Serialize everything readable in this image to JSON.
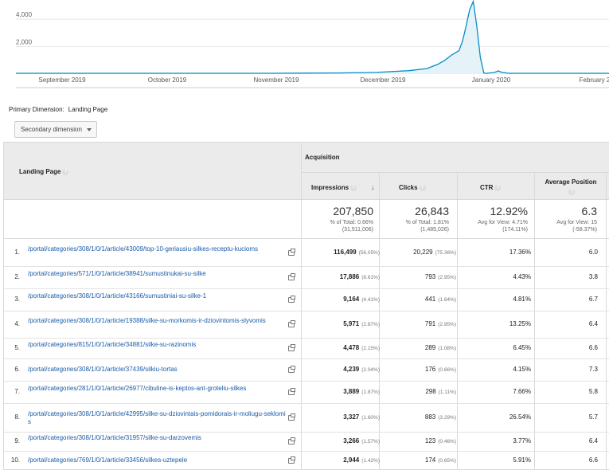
{
  "chart": {
    "y_ticks": [
      "4,000",
      "2,000"
    ],
    "x_ticks": [
      "September 2019",
      "October 2019",
      "November 2019",
      "December 2019",
      "January 2020",
      "February 2"
    ],
    "colors": {
      "line": "#058dc7",
      "fill": "#e5f3f9"
    }
  },
  "chart_data": {
    "type": "area",
    "x": [
      "2019-08-22",
      "2019-09-01",
      "2019-10-01",
      "2019-11-01",
      "2019-11-20",
      "2019-12-01",
      "2019-12-10",
      "2019-12-15",
      "2019-12-18",
      "2019-12-20",
      "2019-12-22",
      "2019-12-24",
      "2019-12-25",
      "2019-12-26",
      "2019-12-27",
      "2019-12-28",
      "2019-12-29",
      "2019-12-30",
      "2019-12-31",
      "2020-01-01",
      "2020-01-03",
      "2020-01-04",
      "2020-01-05",
      "2020-01-07",
      "2020-01-10",
      "2020-01-20",
      "2020-02-04"
    ],
    "values": [
      60,
      60,
      60,
      60,
      80,
      120,
      250,
      400,
      700,
      1000,
      1400,
      1700,
      2400,
      3500,
      4700,
      5300,
      3500,
      1200,
      60,
      60,
      120,
      230,
      120,
      60,
      60,
      60,
      60
    ],
    "ylim": [
      0,
      5400
    ],
    "y_ticks": [
      2000,
      4000
    ],
    "grid": true
  },
  "dimension": {
    "label": "Primary Dimension:",
    "value": "Landing Page"
  },
  "secondary_button": "Secondary dimension",
  "table": {
    "col_landing": "Landing Page",
    "group_acquisition": "Acquisition",
    "col_impressions": "Impressions",
    "col_clicks": "Clicks",
    "col_ctr": "CTR",
    "col_position": "Average Position",
    "totals": {
      "impressions": "207,850",
      "impressions_sub1": "% of Total: 0.66%",
      "impressions_sub2": "(31,511,006)",
      "clicks": "26,843",
      "clicks_sub1": "% of Total: 1.81%",
      "clicks_sub2": "(1,485,026)",
      "ctr": "12.92%",
      "ctr_sub1": "Avg for View: 4.71%",
      "ctr_sub2": "(174.11%)",
      "position": "6.3",
      "position_sub1": "Avg for View: 15",
      "position_sub2": "(-58.37%)"
    },
    "rows": [
      {
        "num": "1.",
        "page": "/portal/categories/308/1/0/1/article/43009/top-10-geriausiu-silkes-receptu-kucioms",
        "imp": "116,499",
        "imp_pct": "(56.05%)",
        "clicks": "20,229",
        "clicks_pct": "(75.36%)",
        "ctr": "17.36%",
        "pos": "6.0"
      },
      {
        "num": "2.",
        "page": "/portal/categories/571/1/0/1/article/38941/sumustinukai-su-silke",
        "imp": "17,886",
        "imp_pct": "(8.61%)",
        "clicks": "793",
        "clicks_pct": "(2.95%)",
        "ctr": "4.43%",
        "pos": "3.8"
      },
      {
        "num": "3.",
        "page": "/portal/categories/308/1/0/1/article/43166/sumustiniai-su-silke-1",
        "imp": "9,164",
        "imp_pct": "(4.41%)",
        "clicks": "441",
        "clicks_pct": "(1.64%)",
        "ctr": "4.81%",
        "pos": "6.7"
      },
      {
        "num": "4.",
        "page": "/portal/categories/308/1/0/1/article/19388/silke-su-morkomis-ir-dziovintomis-slyvomis",
        "imp": "5,971",
        "imp_pct": "(2.87%)",
        "clicks": "791",
        "clicks_pct": "(2.95%)",
        "ctr": "13.25%",
        "pos": "6.4"
      },
      {
        "num": "5.",
        "page": "/portal/categories/815/1/0/1/article/34881/silke-su-razinomis",
        "imp": "4,478",
        "imp_pct": "(2.15%)",
        "clicks": "289",
        "clicks_pct": "(1.08%)",
        "ctr": "6.45%",
        "pos": "6.6"
      },
      {
        "num": "6.",
        "page": "/portal/categories/308/1/0/1/article/37439/silkiu-tortas",
        "imp": "4,239",
        "imp_pct": "(2.04%)",
        "clicks": "176",
        "clicks_pct": "(0.66%)",
        "ctr": "4.15%",
        "pos": "7.3"
      },
      {
        "num": "7.",
        "page": "/portal/categories/281/1/0/1/article/26977/cibuline-is-keptos-ant-groteliu-silkes",
        "imp": "3,889",
        "imp_pct": "(1.87%)",
        "clicks": "298",
        "clicks_pct": "(1.11%)",
        "ctr": "7.66%",
        "pos": "5.8"
      },
      {
        "num": "8.",
        "page": "/portal/categories/308/1/0/1/article/42995/silke-su-dziovintais-pomidorais-ir-moliugu-seklomis",
        "imp": "3,327",
        "imp_pct": "(1.60%)",
        "clicks": "883",
        "clicks_pct": "(3.29%)",
        "ctr": "26.54%",
        "pos": "5.7"
      },
      {
        "num": "9.",
        "page": "/portal/categories/308/1/0/1/article/31957/silke-su-darzovemis",
        "imp": "3,266",
        "imp_pct": "(1.57%)",
        "clicks": "123",
        "clicks_pct": "(0.46%)",
        "ctr": "3.77%",
        "pos": "6.4"
      },
      {
        "num": "10.",
        "page": "/portal/categories/769/1/0/1/article/33456/silkes-uztepele",
        "imp": "2,944",
        "imp_pct": "(1.42%)",
        "clicks": "174",
        "clicks_pct": "(0.65%)",
        "ctr": "5.91%",
        "pos": "6.6"
      }
    ]
  }
}
